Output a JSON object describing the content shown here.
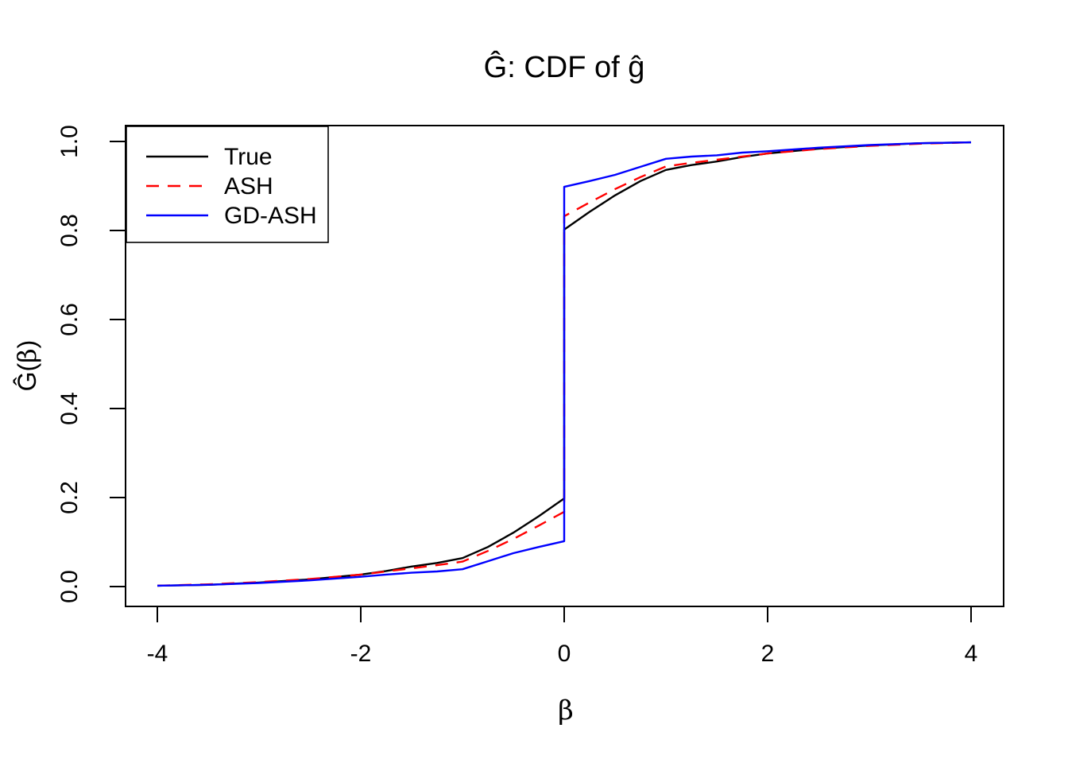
{
  "title": "Ĝ: CDF of ĝ",
  "chart_data": {
    "type": "line",
    "title": "Ĝ: CDF of ĝ",
    "xlabel": "β",
    "ylabel": "Ĝ(β)",
    "ylabel_parts": {
      "prefix": "Ĝ(",
      "beta": "β",
      "suffix": ")"
    },
    "xlim": [
      -4,
      4
    ],
    "ylim": [
      0,
      1
    ],
    "grid": false,
    "legend_position": "topleft",
    "xticks": {
      "values": [
        -4,
        -2,
        0,
        2,
        4
      ],
      "labels": [
        "-4",
        "-2",
        "0",
        "2",
        "4"
      ]
    },
    "yticks": {
      "values": [
        0,
        0.2,
        0.4,
        0.6,
        0.8,
        1.0
      ],
      "labels": [
        "0.0",
        "0.2",
        "0.4",
        "0.6",
        "0.8",
        "1.0"
      ]
    },
    "colors": {
      "true": "#000000",
      "ash": "#ff0000",
      "gd_ash": "#0000ff"
    },
    "series": [
      {
        "name": "True",
        "color": "#000000",
        "style": "solid",
        "points": [
          [
            -4,
            0.002
          ],
          [
            -3.5,
            0.004
          ],
          [
            -3,
            0.009
          ],
          [
            -2.5,
            0.016
          ],
          [
            -2,
            0.027
          ],
          [
            -1.75,
            0.035
          ],
          [
            -1.5,
            0.045
          ],
          [
            -1.25,
            0.053
          ],
          [
            -1,
            0.064
          ],
          [
            -0.75,
            0.089
          ],
          [
            -0.5,
            0.121
          ],
          [
            -0.25,
            0.158
          ],
          [
            0,
            0.198
          ],
          [
            0,
            0.802
          ],
          [
            0.25,
            0.842
          ],
          [
            0.5,
            0.879
          ],
          [
            0.75,
            0.911
          ],
          [
            1,
            0.936
          ],
          [
            1.25,
            0.947
          ],
          [
            1.5,
            0.955
          ],
          [
            1.75,
            0.965
          ],
          [
            2,
            0.973
          ],
          [
            2.5,
            0.984
          ],
          [
            3,
            0.991
          ],
          [
            3.5,
            0.996
          ],
          [
            4,
            0.998
          ]
        ]
      },
      {
        "name": "ASH",
        "color": "#ff0000",
        "style": "dashed",
        "points": [
          [
            -4,
            0.002
          ],
          [
            -3.5,
            0.005
          ],
          [
            -3,
            0.01
          ],
          [
            -2.5,
            0.017
          ],
          [
            -2,
            0.027
          ],
          [
            -1.75,
            0.034
          ],
          [
            -1.5,
            0.041
          ],
          [
            -1.25,
            0.048
          ],
          [
            -1,
            0.056
          ],
          [
            -0.75,
            0.08
          ],
          [
            -0.5,
            0.107
          ],
          [
            -0.25,
            0.137
          ],
          [
            0,
            0.168
          ],
          [
            0,
            0.832
          ],
          [
            0.25,
            0.863
          ],
          [
            0.5,
            0.893
          ],
          [
            0.75,
            0.92
          ],
          [
            1,
            0.944
          ],
          [
            1.25,
            0.952
          ],
          [
            1.5,
            0.959
          ],
          [
            1.75,
            0.966
          ],
          [
            2,
            0.973
          ],
          [
            2.5,
            0.983
          ],
          [
            3,
            0.99
          ],
          [
            3.5,
            0.995
          ],
          [
            4,
            0.998
          ]
        ]
      },
      {
        "name": "GD-ASH",
        "color": "#0000ff",
        "style": "solid",
        "points": [
          [
            -4,
            0.002
          ],
          [
            -3.5,
            0.004
          ],
          [
            -3,
            0.008
          ],
          [
            -2.5,
            0.014
          ],
          [
            -2,
            0.022
          ],
          [
            -1.75,
            0.027
          ],
          [
            -1.5,
            0.031
          ],
          [
            -1.25,
            0.034
          ],
          [
            -1,
            0.039
          ],
          [
            -0.75,
            0.057
          ],
          [
            -0.5,
            0.075
          ],
          [
            -0.25,
            0.089
          ],
          [
            0,
            0.102
          ],
          [
            0,
            0.898
          ],
          [
            0.25,
            0.911
          ],
          [
            0.5,
            0.925
          ],
          [
            0.75,
            0.943
          ],
          [
            1,
            0.961
          ],
          [
            1.25,
            0.966
          ],
          [
            1.5,
            0.969
          ],
          [
            1.75,
            0.975
          ],
          [
            2,
            0.978
          ],
          [
            2.5,
            0.986
          ],
          [
            3,
            0.992
          ],
          [
            3.5,
            0.996
          ],
          [
            4,
            0.998
          ]
        ]
      }
    ],
    "legend": {
      "items": [
        {
          "label": "True",
          "color": "#000000",
          "style": "solid"
        },
        {
          "label": "ASH",
          "color": "#ff0000",
          "style": "dashed"
        },
        {
          "label": "GD-ASH",
          "color": "#0000ff",
          "style": "solid"
        }
      ]
    }
  }
}
